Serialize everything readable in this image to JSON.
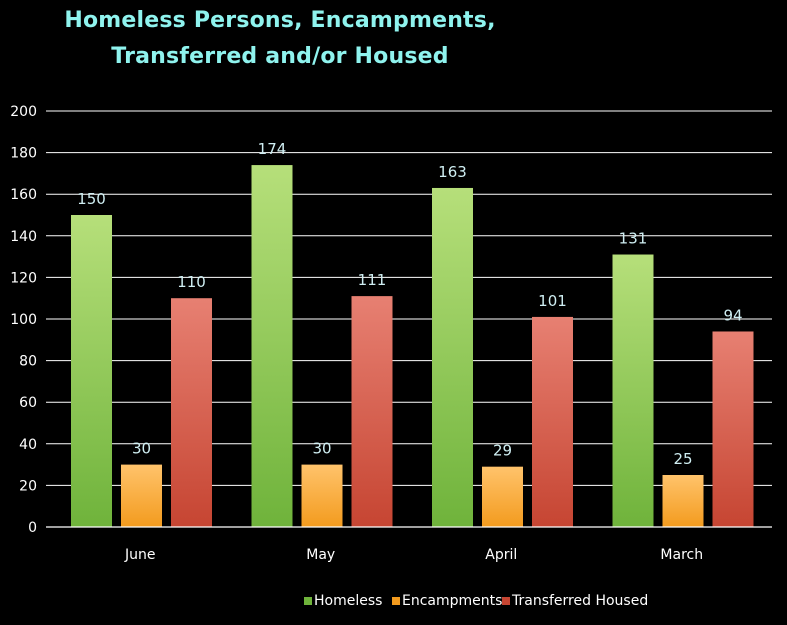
{
  "title_lines": [
    "Homeless Persons, Encampments,",
    "Transferred and/or Housed"
  ],
  "chart_data": {
    "type": "bar",
    "title": "Homeless Persons, Encampments, Transferred and/or Housed",
    "categories": [
      "June",
      "May",
      "April",
      "March"
    ],
    "series": [
      {
        "name": "Homeless",
        "values": [
          150,
          174,
          163,
          131
        ],
        "color_top": "#b6df7a",
        "color_bottom": "#6fb33b"
      },
      {
        "name": "Encampments",
        "values": [
          30,
          30,
          29,
          25
        ],
        "color_top": "#ffc36b",
        "color_bottom": "#f39b1e"
      },
      {
        "name": "Transferred Housed",
        "values": [
          110,
          111,
          101,
          94
        ],
        "color_top": "#e78072",
        "color_bottom": "#c64532"
      }
    ],
    "ylim": [
      0,
      200
    ],
    "yticks": [
      0,
      20,
      40,
      60,
      80,
      100,
      120,
      140,
      160,
      180,
      200
    ],
    "grid": true,
    "legend_position": "bottom-right",
    "data_labels": true
  },
  "colors": {
    "background": "#000000",
    "title": "#8ff3ee",
    "text": "#ffffff",
    "data_label": "#cfeef2",
    "grid": "#ffffff"
  }
}
